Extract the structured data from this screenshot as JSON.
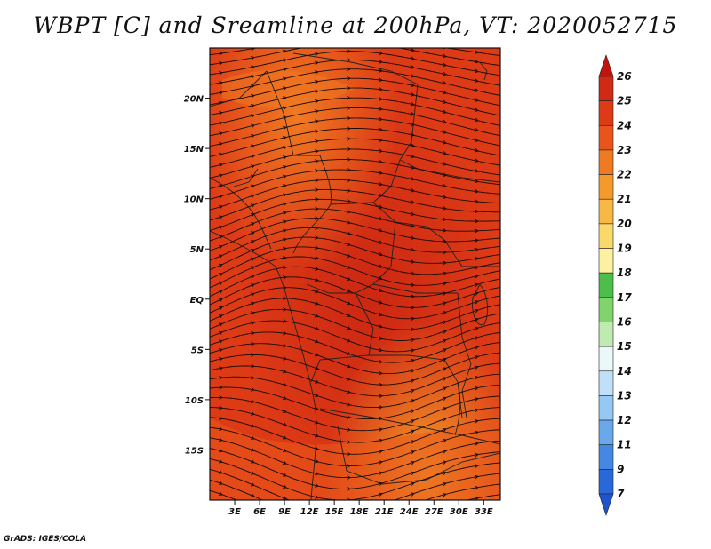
{
  "title": "WBPT [C] and Sreamline at 200hPa, VT: 2020052715",
  "credit": "GrADS: IGES/COLA",
  "map": {
    "lat_labels": [
      "20N",
      "15N",
      "10N",
      "5N",
      "EQ",
      "5S",
      "10S",
      "15S"
    ],
    "lat_values": [
      20,
      15,
      10,
      5,
      0,
      -5,
      -10,
      -15
    ],
    "lon_labels": [
      "3E",
      "6E",
      "9E",
      "12E",
      "15E",
      "18E",
      "21E",
      "24E",
      "27E",
      "30E",
      "33E"
    ],
    "lon_values": [
      3,
      6,
      9,
      12,
      15,
      18,
      21,
      24,
      27,
      30,
      33
    ],
    "lon_range": [
      0,
      35
    ],
    "lat_range": [
      -20,
      25
    ],
    "field_colors": {
      "main": "#dd3a16",
      "warm": "#e8541a",
      "hot": "#c81e10",
      "cool": "#f07a22"
    }
  },
  "colorbar": {
    "levels": [
      "26",
      "25",
      "24",
      "23",
      "22",
      "21",
      "20",
      "19",
      "18",
      "17",
      "16",
      "15",
      "14",
      "13",
      "12",
      "11",
      "9",
      "7"
    ],
    "colors": [
      "#c0140c",
      "#d02a14",
      "#de3a16",
      "#e8541a",
      "#f07a22",
      "#f59a2a",
      "#f8b846",
      "#fbd86a",
      "#fdf0a0",
      "#4cbf48",
      "#7fd46c",
      "#bfeab0",
      "#eaf8fa",
      "#bfe0f8",
      "#96c8f4",
      "#6aa8ec",
      "#4488e4",
      "#2868d8",
      "#1e54cc"
    ]
  }
}
